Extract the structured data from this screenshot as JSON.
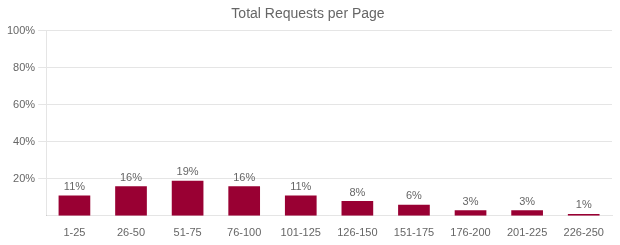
{
  "chart_data": {
    "type": "bar",
    "title": "Total Requests per Page",
    "categories": [
      "1-25",
      "26-50",
      "51-75",
      "76-100",
      "101-125",
      "126-150",
      "151-175",
      "176-200",
      "201-225",
      "226-250"
    ],
    "values": [
      11,
      16,
      19,
      16,
      11,
      8,
      6,
      3,
      3,
      1
    ],
    "value_labels": [
      "11%",
      "16%",
      "19%",
      "16%",
      "11%",
      "8%",
      "6%",
      "3%",
      "3%",
      "1%"
    ],
    "data_labels": true,
    "color": "#990033",
    "ylim": [
      0,
      100
    ],
    "yticks": [
      {
        "value": 20,
        "label": "20%"
      },
      {
        "value": 40,
        "label": "40%"
      },
      {
        "value": 60,
        "label": "60%"
      },
      {
        "value": 80,
        "label": "80%"
      },
      {
        "value": 100,
        "label": "100%"
      }
    ],
    "grid": true
  }
}
